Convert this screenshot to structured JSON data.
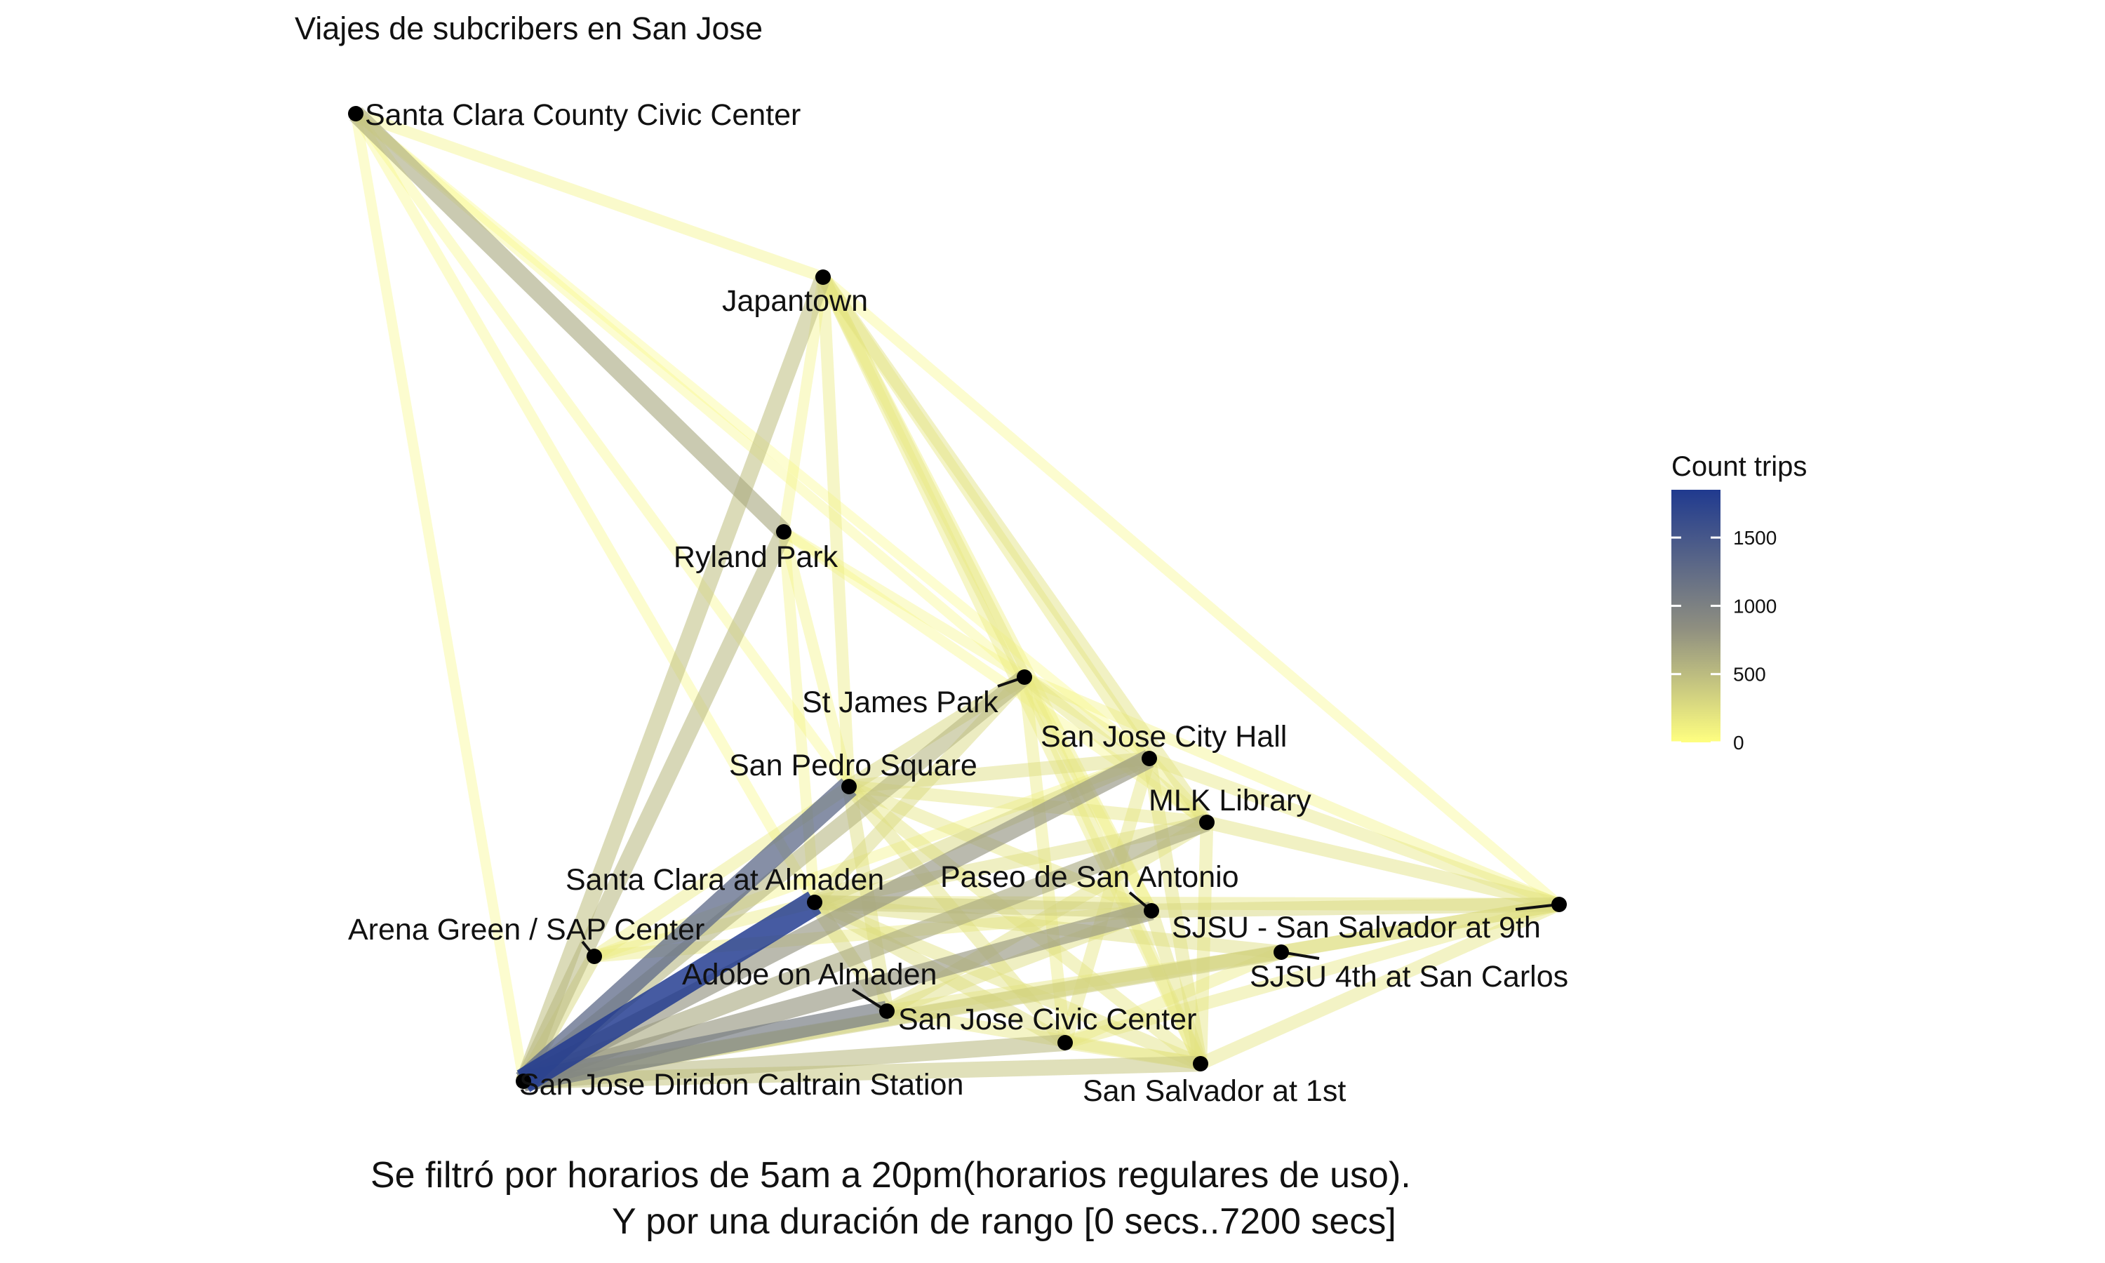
{
  "title": "Viajes de subcribers en San Jose",
  "caption": {
    "line1": "Se filtró por horarios de 5am a 20pm(horarios regulares de uso).",
    "line2": "Y por una duración de rango [0 secs..7200 secs]"
  },
  "legend": {
    "title": "Count trips",
    "ticks": [
      "0",
      "500",
      "1000",
      "1500"
    ],
    "tick_values": [
      0,
      500,
      1000,
      1500
    ],
    "max_value": 1850,
    "color_low": "#ffff80",
    "color_mid": "#8f8f80",
    "color_high": "#203a8f"
  },
  "stations": [
    {
      "id": "sccc",
      "name": "Santa Clara County Civic Center"
    },
    {
      "id": "jap",
      "name": "Japantown"
    },
    {
      "id": "ryl",
      "name": "Ryland Park"
    },
    {
      "id": "stj",
      "name": "St James Park"
    },
    {
      "id": "sjch",
      "name": "San Jose City Hall"
    },
    {
      "id": "sps",
      "name": "San Pedro Square"
    },
    {
      "id": "mlk",
      "name": "MLK Library"
    },
    {
      "id": "sca",
      "name": "Santa Clara at Almaden"
    },
    {
      "id": "psa",
      "name": "Paseo de San Antonio"
    },
    {
      "id": "arena",
      "name": "Arena Green / SAP Center"
    },
    {
      "id": "sjsu9",
      "name": "SJSU - San Salvador at 9th"
    },
    {
      "id": "adobe",
      "name": "Adobe on Almaden"
    },
    {
      "id": "sjsu4",
      "name": "SJSU 4th at San Carlos"
    },
    {
      "id": "sjcc",
      "name": "San Jose Civic Center"
    },
    {
      "id": "diridon",
      "name": "San Jose Diridon Caltrain Station"
    },
    {
      "id": "ss1",
      "name": "San Salvador at 1st"
    }
  ],
  "edges": [
    {
      "from": "diridon",
      "to": "sca",
      "count": 1850
    },
    {
      "from": "diridon",
      "to": "sps",
      "count": 1300
    },
    {
      "from": "diridon",
      "to": "adobe",
      "count": 1050
    },
    {
      "from": "diridon",
      "to": "sjch",
      "count": 800
    },
    {
      "from": "diridon",
      "to": "psa",
      "count": 780
    },
    {
      "from": "diridon",
      "to": "mlk",
      "count": 650
    },
    {
      "from": "diridon",
      "to": "stj",
      "count": 550
    },
    {
      "from": "diridon",
      "to": "ryl",
      "count": 520
    },
    {
      "from": "diridon",
      "to": "jap",
      "count": 480
    },
    {
      "from": "diridon",
      "to": "sjcc",
      "count": 520
    },
    {
      "from": "diridon",
      "to": "ss1",
      "count": 420
    },
    {
      "from": "diridon",
      "to": "sjsu4",
      "count": 380
    },
    {
      "from": "diridon",
      "to": "sjsu9",
      "count": 250
    },
    {
      "from": "diridon",
      "to": "arena",
      "count": 300
    },
    {
      "from": "diridon",
      "to": "sccc",
      "count": 60
    },
    {
      "from": "sccc",
      "to": "ryl",
      "count": 650
    },
    {
      "from": "sccc",
      "to": "jap",
      "count": 100
    },
    {
      "from": "sccc",
      "to": "sps",
      "count": 60
    },
    {
      "from": "sccc",
      "to": "sca",
      "count": 70
    },
    {
      "from": "sccc",
      "to": "stj",
      "count": 50
    },
    {
      "from": "sccc",
      "to": "sjch",
      "count": 40
    },
    {
      "from": "jap",
      "to": "stj",
      "count": 200
    },
    {
      "from": "jap",
      "to": "sjch",
      "count": 180
    },
    {
      "from": "jap",
      "to": "mlk",
      "count": 220
    },
    {
      "from": "jap",
      "to": "ss1",
      "count": 150
    },
    {
      "from": "jap",
      "to": "psa",
      "count": 130
    },
    {
      "from": "jap",
      "to": "sps",
      "count": 150
    },
    {
      "from": "jap",
      "to": "sjsu9",
      "count": 60
    },
    {
      "from": "jap",
      "to": "ryl",
      "count": 90
    },
    {
      "from": "ryl",
      "to": "sps",
      "count": 100
    },
    {
      "from": "ryl",
      "to": "stj",
      "count": 80
    },
    {
      "from": "ryl",
      "to": "sca",
      "count": 90
    },
    {
      "from": "ryl",
      "to": "mlk",
      "count": 60
    },
    {
      "from": "stj",
      "to": "sps",
      "count": 300
    },
    {
      "from": "stj",
      "to": "sca",
      "count": 280
    },
    {
      "from": "stj",
      "to": "mlk",
      "count": 200
    },
    {
      "from": "stj",
      "to": "sjch",
      "count": 150
    },
    {
      "from": "stj",
      "to": "ss1",
      "count": 170
    },
    {
      "from": "stj",
      "to": "psa",
      "count": 130
    },
    {
      "from": "stj",
      "to": "sjcc",
      "count": 150
    },
    {
      "from": "stj",
      "to": "sjsu9",
      "count": 100
    },
    {
      "from": "sjch",
      "to": "sps",
      "count": 250
    },
    {
      "from": "sjch",
      "to": "sca",
      "count": 300
    },
    {
      "from": "sjch",
      "to": "ss1",
      "count": 220
    },
    {
      "from": "sjch",
      "to": "sjsu9",
      "count": 180
    },
    {
      "from": "sjch",
      "to": "mlk",
      "count": 150
    },
    {
      "from": "sjch",
      "to": "sjcc",
      "count": 200
    },
    {
      "from": "mlk",
      "to": "sca",
      "count": 250
    },
    {
      "from": "mlk",
      "to": "adobe",
      "count": 230
    },
    {
      "from": "mlk",
      "to": "ss1",
      "count": 200
    },
    {
      "from": "mlk",
      "to": "sjsu9",
      "count": 220
    },
    {
      "from": "mlk",
      "to": "sps",
      "count": 200
    },
    {
      "from": "psa",
      "to": "sca",
      "count": 350
    },
    {
      "from": "psa",
      "to": "sjsu9",
      "count": 300
    },
    {
      "from": "psa",
      "to": "adobe",
      "count": 250
    },
    {
      "from": "psa",
      "to": "sps",
      "count": 200
    },
    {
      "from": "psa",
      "to": "ss1",
      "count": 220
    },
    {
      "from": "psa",
      "to": "arena",
      "count": 150
    },
    {
      "from": "sjsu4",
      "to": "sca",
      "count": 250
    },
    {
      "from": "sjsu4",
      "to": "adobe",
      "count": 200
    },
    {
      "from": "sjsu4",
      "to": "sjsu9",
      "count": 250
    },
    {
      "from": "sjsu4",
      "to": "sjcc",
      "count": 150
    },
    {
      "from": "sjsu9",
      "to": "sca",
      "count": 200
    },
    {
      "from": "sjsu9",
      "to": "ss1",
      "count": 200
    },
    {
      "from": "sjsu9",
      "to": "sjcc",
      "count": 180
    },
    {
      "from": "sjcc",
      "to": "sca",
      "count": 250
    },
    {
      "from": "sjcc",
      "to": "sps",
      "count": 220
    },
    {
      "from": "sjcc",
      "to": "ss1",
      "count": 200
    },
    {
      "from": "ss1",
      "to": "sca",
      "count": 220
    },
    {
      "from": "ss1",
      "to": "adobe",
      "count": 180
    },
    {
      "from": "ss1",
      "to": "sps",
      "count": 200
    },
    {
      "from": "adobe",
      "to": "sps",
      "count": 250
    },
    {
      "from": "adobe",
      "to": "sca",
      "count": 300
    },
    {
      "from": "arena",
      "to": "sca",
      "count": 150
    },
    {
      "from": "arena",
      "to": "sps",
      "count": 150
    },
    {
      "from": "arena",
      "to": "sjch",
      "count": 100
    }
  ]
}
